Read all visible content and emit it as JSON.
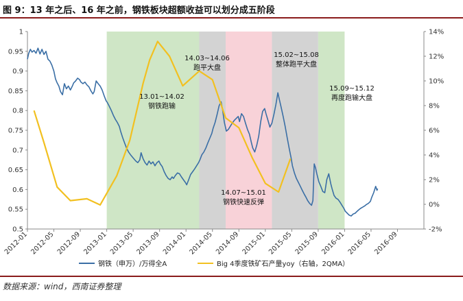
{
  "figure": {
    "title": "图 9：13 年之后、16 年之前，钢铁板块超额收益可以划分成五阶段",
    "source": "数据来源：wind，西南证券整理"
  },
  "colors": {
    "steel": "#3a6ea5",
    "steel_dark": "#1f3f78",
    "big4": "#f2c020",
    "green_band": "#cfe6c6",
    "gray_band": "#d3d3d3",
    "pink_band": "#f8d2d8"
  },
  "chart_data": {
    "type": "line",
    "x_axis": {
      "labels": [
        "2012-01",
        "2012-05",
        "2012-09",
        "2013-01",
        "2013-05",
        "2013-09",
        "2014-01",
        "2014-05",
        "2014-09",
        "2015-01",
        "2015-05",
        "2015-09",
        "2016-01",
        "2016-05",
        "2016-09"
      ],
      "range": [
        "2012-01",
        "2016-12"
      ]
    },
    "y_left": {
      "min": 0.5,
      "max": 1.0,
      "ticks": [
        "0.5",
        "0.55",
        "0.6",
        "0.65",
        "0.7",
        "0.75",
        "0.8",
        "0.85",
        "0.9",
        "0.95",
        "1"
      ]
    },
    "y_right": {
      "min": -2,
      "max": 14,
      "ticks": [
        "-2%",
        "0%",
        "2%",
        "4%",
        "6%",
        "8%",
        "10%",
        "12%",
        "14%"
      ]
    },
    "series": [
      {
        "name": "钢铁（申万）/万得全A",
        "axis": "left",
        "type": "line",
        "points": [
          [
            0.0,
            0.93
          ],
          [
            0.2,
            0.945
          ],
          [
            0.45,
            0.955
          ],
          [
            0.7,
            0.948
          ],
          [
            1.0,
            0.952
          ],
          [
            1.3,
            0.945
          ],
          [
            1.6,
            0.958
          ],
          [
            1.9,
            0.943
          ],
          [
            2.2,
            0.955
          ],
          [
            2.5,
            0.942
          ],
          [
            2.8,
            0.95
          ],
          [
            3.1,
            0.93
          ],
          [
            3.4,
            0.925
          ],
          [
            3.7,
            0.915
          ],
          [
            4.0,
            0.9
          ],
          [
            4.25,
            0.88
          ],
          [
            4.5,
            0.87
          ],
          [
            4.75,
            0.862
          ],
          [
            5.0,
            0.848
          ],
          [
            5.3,
            0.84
          ],
          [
            5.6,
            0.868
          ],
          [
            5.9,
            0.855
          ],
          [
            6.2,
            0.862
          ],
          [
            6.5,
            0.852
          ],
          [
            6.8,
            0.862
          ],
          [
            7.0,
            0.87
          ],
          [
            7.3,
            0.875
          ],
          [
            7.6,
            0.882
          ],
          [
            7.9,
            0.878
          ],
          [
            8.1,
            0.872
          ],
          [
            8.4,
            0.868
          ],
          [
            8.7,
            0.872
          ],
          [
            9.0,
            0.865
          ],
          [
            9.3,
            0.86
          ],
          [
            9.6,
            0.85
          ],
          [
            9.9,
            0.842
          ],
          [
            10.1,
            0.848
          ],
          [
            10.4,
            0.875
          ],
          [
            10.7,
            0.868
          ],
          [
            11.0,
            0.862
          ],
          [
            11.3,
            0.852
          ],
          [
            11.6,
            0.838
          ],
          [
            11.9,
            0.825
          ],
          [
            12.1,
            0.82
          ],
          [
            12.4,
            0.81
          ],
          [
            12.7,
            0.8
          ],
          [
            13.0,
            0.788
          ],
          [
            13.3,
            0.778
          ],
          [
            13.6,
            0.77
          ],
          [
            13.9,
            0.76
          ],
          [
            14.1,
            0.748
          ],
          [
            14.4,
            0.732
          ],
          [
            14.7,
            0.718
          ],
          [
            15.0,
            0.705
          ],
          [
            15.3,
            0.695
          ],
          [
            15.6,
            0.688
          ],
          [
            15.9,
            0.682
          ],
          [
            16.1,
            0.678
          ],
          [
            16.4,
            0.672
          ],
          [
            16.7,
            0.668
          ],
          [
            17.0,
            0.675
          ],
          [
            17.2,
            0.693
          ],
          [
            17.5,
            0.678
          ],
          [
            17.8,
            0.668
          ],
          [
            18.1,
            0.662
          ],
          [
            18.4,
            0.672
          ],
          [
            18.7,
            0.665
          ],
          [
            19.0,
            0.67
          ],
          [
            19.3,
            0.66
          ],
          [
            19.6,
            0.668
          ],
          [
            19.9,
            0.672
          ],
          [
            20.1,
            0.665
          ],
          [
            20.4,
            0.658
          ],
          [
            20.7,
            0.645
          ],
          [
            21.0,
            0.635
          ],
          [
            21.3,
            0.628
          ],
          [
            21.6,
            0.625
          ],
          [
            21.9,
            0.632
          ],
          [
            22.1,
            0.628
          ],
          [
            22.4,
            0.636
          ],
          [
            22.7,
            0.642
          ],
          [
            23.0,
            0.64
          ],
          [
            23.3,
            0.632
          ],
          [
            23.6,
            0.625
          ],
          [
            23.9,
            0.618
          ],
          [
            24.1,
            0.612
          ],
          [
            24.4,
            0.625
          ],
          [
            24.7,
            0.638
          ],
          [
            25.0,
            0.645
          ],
          [
            25.3,
            0.652
          ],
          [
            25.6,
            0.66
          ],
          [
            25.9,
            0.668
          ],
          [
            26.1,
            0.675
          ],
          [
            26.4,
            0.688
          ],
          [
            26.7,
            0.695
          ],
          [
            27.0,
            0.705
          ],
          [
            27.3,
            0.718
          ],
          [
            27.6,
            0.73
          ],
          [
            27.9,
            0.742
          ],
          [
            28.1,
            0.755
          ],
          [
            28.4,
            0.77
          ],
          [
            28.7,
            0.79
          ],
          [
            29.0,
            0.812
          ],
          [
            29.3,
            0.822
          ],
          [
            29.5,
            0.805
          ],
          [
            29.8,
            0.77
          ],
          [
            30.1,
            0.748
          ],
          [
            30.4,
            0.752
          ],
          [
            30.7,
            0.76
          ],
          [
            31.0,
            0.768
          ],
          [
            31.3,
            0.775
          ],
          [
            31.6,
            0.78
          ],
          [
            31.9,
            0.785
          ],
          [
            32.1,
            0.772
          ],
          [
            32.4,
            0.792
          ],
          [
            32.7,
            0.785
          ],
          [
            33.0,
            0.768
          ],
          [
            33.3,
            0.752
          ],
          [
            33.6,
            0.74
          ],
          [
            33.9,
            0.718
          ],
          [
            34.1,
            0.705
          ],
          [
            34.4,
            0.695
          ],
          [
            34.7,
            0.712
          ],
          [
            35.0,
            0.735
          ],
          [
            35.3,
            0.772
          ],
          [
            35.6,
            0.798
          ],
          [
            35.9,
            0.805
          ],
          [
            36.1,
            0.792
          ],
          [
            36.4,
            0.775
          ],
          [
            36.7,
            0.758
          ],
          [
            37.0,
            0.768
          ],
          [
            37.3,
            0.79
          ],
          [
            37.6,
            0.815
          ],
          [
            37.9,
            0.845
          ],
          [
            38.1,
            0.83
          ],
          [
            38.4,
            0.808
          ],
          [
            38.7,
            0.785
          ],
          [
            39.0,
            0.76
          ],
          [
            39.3,
            0.732
          ],
          [
            39.6,
            0.705
          ],
          [
            39.9,
            0.68
          ],
          [
            40.1,
            0.66
          ],
          [
            40.4,
            0.642
          ],
          [
            40.7,
            0.628
          ],
          [
            41.0,
            0.618
          ],
          [
            41.3,
            0.608
          ],
          [
            41.6,
            0.598
          ],
          [
            41.9,
            0.588
          ],
          [
            42.1,
            0.582
          ],
          [
            42.4,
            0.572
          ],
          [
            42.7,
            0.565
          ],
          [
            43.0,
            0.56
          ],
          [
            43.2,
            0.572
          ],
          [
            43.4,
            0.665
          ],
          [
            43.6,
            0.655
          ],
          [
            43.8,
            0.64
          ],
          [
            44.1,
            0.62
          ],
          [
            44.4,
            0.608
          ],
          [
            44.7,
            0.595
          ],
          [
            45.0,
            0.592
          ],
          [
            45.3,
            0.625
          ],
          [
            45.6,
            0.64
          ],
          [
            45.9,
            0.615
          ],
          [
            46.1,
            0.602
          ],
          [
            46.4,
            0.585
          ],
          [
            46.7,
            0.578
          ],
          [
            47.0,
            0.575
          ],
          [
            47.3,
            0.568
          ],
          [
            47.6,
            0.56
          ],
          [
            47.9,
            0.552
          ],
          [
            48.1,
            0.545
          ],
          [
            48.4,
            0.54
          ],
          [
            48.7,
            0.535
          ],
          [
            49.0,
            0.533
          ],
          [
            49.3,
            0.538
          ],
          [
            49.6,
            0.54
          ],
          [
            49.9,
            0.545
          ],
          [
            50.1,
            0.548
          ],
          [
            50.4,
            0.552
          ],
          [
            50.7,
            0.555
          ],
          [
            51.0,
            0.558
          ],
          [
            51.3,
            0.562
          ],
          [
            51.6,
            0.565
          ],
          [
            51.9,
            0.57
          ],
          [
            52.1,
            0.58
          ],
          [
            52.4,
            0.592
          ],
          [
            52.7,
            0.608
          ],
          [
            52.9,
            0.598
          ],
          [
            53.0,
            0.602
          ]
        ]
      },
      {
        "name": "Big 4季度铁矿石产量yoy（右轴，2QMA）",
        "axis": "right",
        "type": "line",
        "points": [
          [
            1.0,
            7.6
          ],
          [
            2.5,
            5.0
          ],
          [
            4.5,
            1.4
          ],
          [
            6.5,
            0.3
          ],
          [
            9.0,
            0.45
          ],
          [
            11.0,
            -0.05
          ],
          [
            13.5,
            2.3
          ],
          [
            15.5,
            5.2
          ],
          [
            17.5,
            9.8
          ],
          [
            18.5,
            11.7
          ],
          [
            19.7,
            13.2
          ],
          [
            21.5,
            12.0
          ],
          [
            23.5,
            9.6
          ],
          [
            26.0,
            10.8
          ],
          [
            28.0,
            10.1
          ],
          [
            30.0,
            7.0
          ],
          [
            32.0,
            6.2
          ],
          [
            34.0,
            3.8
          ],
          [
            36.0,
            1.7
          ],
          [
            38.0,
            1.0
          ],
          [
            39.8,
            3.7
          ]
        ]
      }
    ],
    "bands": [
      {
        "from": "2013-01",
        "to": "2014-02",
        "label_line1": "13.01~14.02",
        "label_line2": "钢铁跑输",
        "color": "green"
      },
      {
        "from": "2014-03",
        "to": "2014-06",
        "label_line1": "14.03~14.06",
        "label_line2": "跑平大盘",
        "color": "gray"
      },
      {
        "from": "2014-07",
        "to": "2015-01",
        "label_line1": "14.07~15.01",
        "label_line2": "钢铁快速反弹",
        "color": "pink"
      },
      {
        "from": "2015-02",
        "to": "2015-08",
        "label_line1": "15.02~15.08",
        "label_line2": "整体跑平大盘",
        "color": "gray"
      },
      {
        "from": "2015-09",
        "to": "2015-12",
        "label_line1": "15.09~15.12",
        "label_line2": "再度跑输大盘",
        "color": "green"
      }
    ],
    "legend": [
      "钢铁（申万）/万得全A",
      "Big 4季度铁矿石产量yoy（右轴，2QMA）"
    ]
  }
}
